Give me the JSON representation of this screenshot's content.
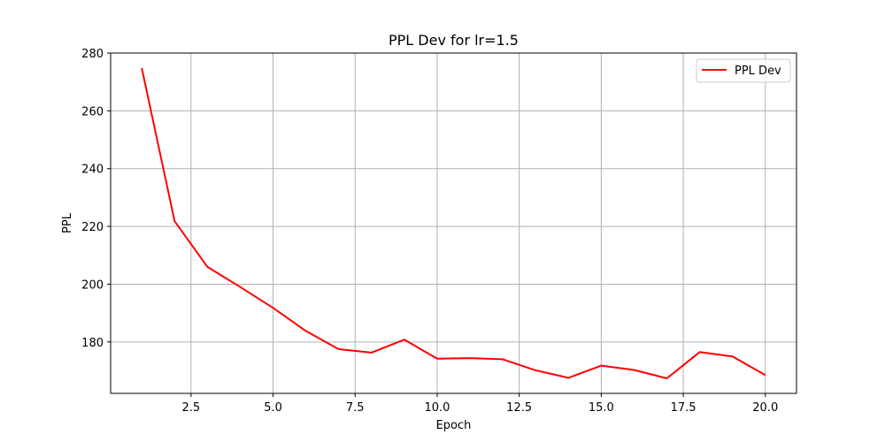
{
  "chart_data": {
    "type": "line",
    "title": "PPL Dev for lr=1.5",
    "xlabel": "Epoch",
    "ylabel": "PPL",
    "xlim": [
      0.05,
      20.95
    ],
    "ylim": [
      162.2,
      280
    ],
    "x_ticks": [
      2.5,
      5.0,
      7.5,
      10.0,
      12.5,
      15.0,
      17.5,
      20.0
    ],
    "x_tick_labels": [
      "2.5",
      "5.0",
      "7.5",
      "10.0",
      "12.5",
      "15.0",
      "17.5",
      "20.0"
    ],
    "y_ticks": [
      180,
      200,
      220,
      240,
      260,
      280
    ],
    "y_tick_labels": [
      "180",
      "200",
      "220",
      "240",
      "260",
      "280"
    ],
    "grid": true,
    "legend_position": "top-right",
    "series": [
      {
        "name": "PPL Dev",
        "color": "#ff0000",
        "x": [
          1,
          2,
          3,
          4,
          5,
          6,
          7,
          8,
          9,
          10,
          11,
          12,
          13,
          14,
          15,
          16,
          17,
          18,
          19,
          20
        ],
        "y": [
          274.8,
          221.8,
          206.0,
          199.0,
          191.8,
          183.8,
          177.5,
          176.3,
          180.8,
          174.2,
          174.4,
          174.0,
          170.2,
          167.6,
          171.8,
          170.3,
          167.4,
          176.5,
          175.0,
          168.5
        ]
      }
    ]
  }
}
